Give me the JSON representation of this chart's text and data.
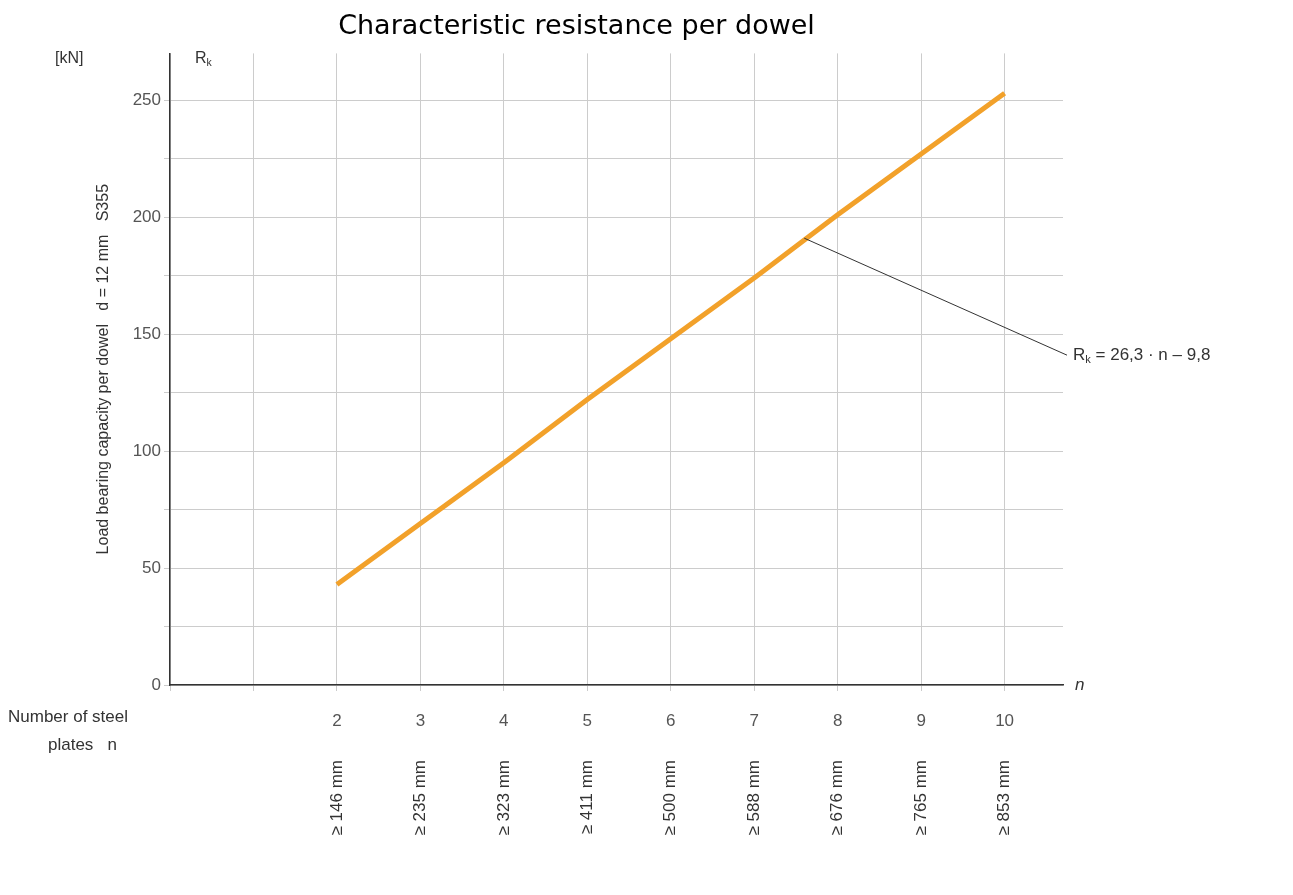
{
  "chart_data": {
    "type": "line",
    "title": "Characteristic resistance per dowel",
    "ylabel": "Load bearing capacity per dowel   d = 12 mm   S355",
    "xlabel": "n",
    "x": [
      2,
      3,
      4,
      5,
      6,
      7,
      8,
      9,
      10
    ],
    "series": [
      {
        "color": "#f2a12a",
        "values": [
          43,
          69,
          95,
          122,
          148,
          174,
          201,
          227,
          253
        ]
      }
    ],
    "xlim": [
      0,
      10.7
    ],
    "ylim": [
      0,
      270
    ],
    "xticks": [
      {
        "value": 0,
        "label": null
      },
      {
        "value": 1,
        "label": null
      },
      2,
      3,
      4,
      5,
      6,
      7,
      8,
      9,
      10
    ],
    "yticks": [
      0,
      {
        "value": 25,
        "label": null
      },
      50,
      {
        "value": 75,
        "label": null
      },
      100,
      {
        "value": 125,
        "label": null
      },
      150,
      {
        "value": 175,
        "label": null
      },
      200,
      {
        "value": 225,
        "label": null
      },
      250
    ],
    "grid": true,
    "legend": false,
    "marker": "none",
    "line_style": "solid",
    "annotations": [
      "[kN]",
      "R$_{k}$",
      "Number of steel plates   n",
      {
        "text": "R$_{k}$ = 26,3 · n – 9,8",
        "x": 7.6,
        "y": 191
      },
      "≥ 146 mm",
      "≥ 235 mm",
      "≥ 323 mm",
      "≥ 411 mm",
      "≥ 500 mm",
      "≥ 588 mm",
      "≥ 676 mm",
      "≥ 765 mm",
      "≥ 853 mm"
    ]
  }
}
